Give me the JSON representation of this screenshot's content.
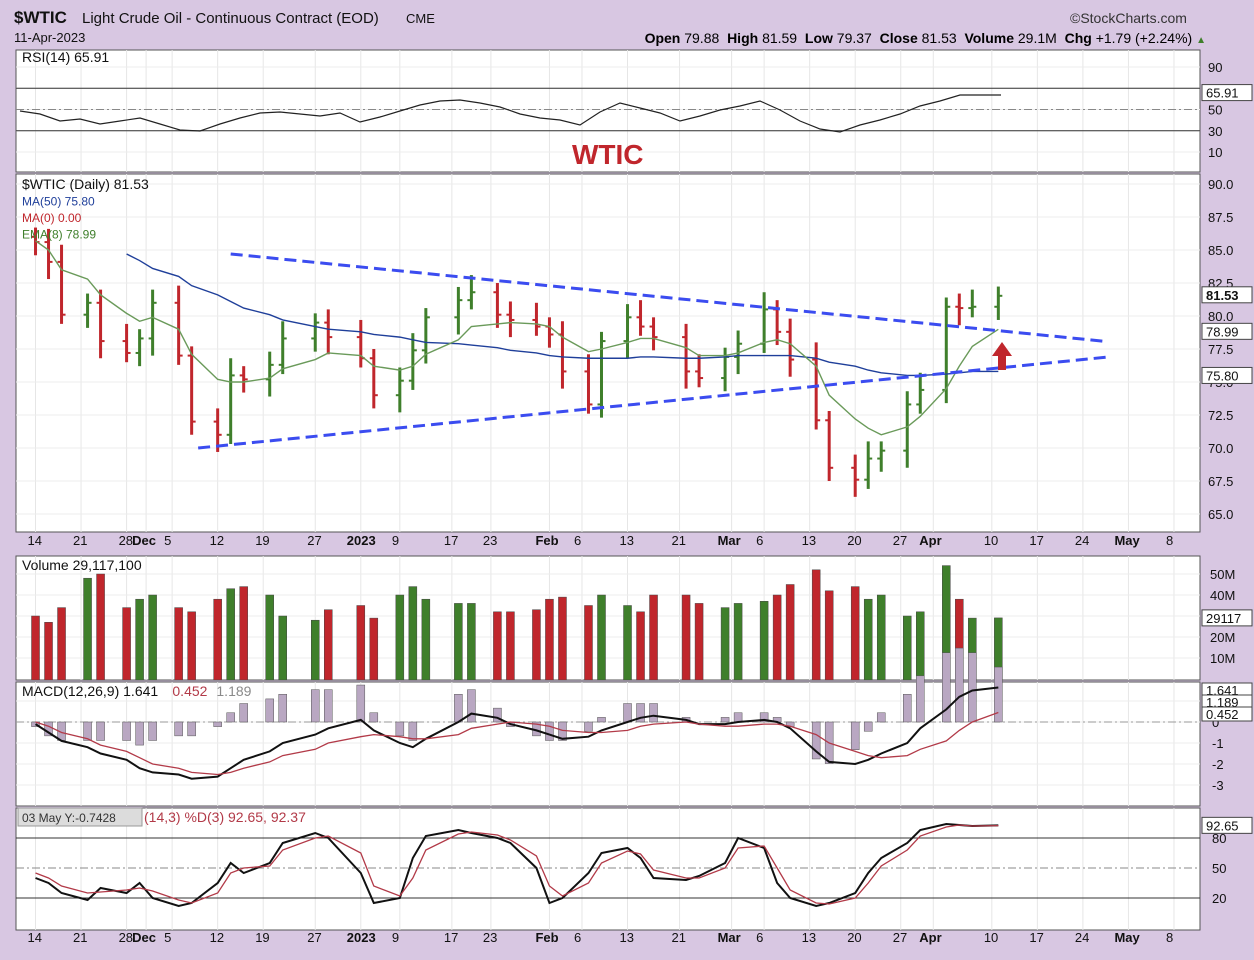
{
  "header": {
    "symbol": "$WTIC",
    "name": "Light Crude Oil - Continuous Contract (EOD)",
    "exchange": "CME",
    "date": "11-Apr-2023",
    "brand": "©StockCharts.com",
    "ohlc": [
      {
        "label": "Open",
        "value": "79.88"
      },
      {
        "label": "High",
        "value": "81.59"
      },
      {
        "label": "Low",
        "value": "79.37"
      },
      {
        "label": "Close",
        "value": "81.53"
      },
      {
        "label": "Volume",
        "value": "29.1M"
      },
      {
        "label": "Chg",
        "value": "+1.79 (+2.24%)"
      }
    ]
  },
  "rsi_panel": {
    "legend": "RSI(14) 65.91",
    "current": 65.91,
    "current_label": "65.91",
    "ticks": [
      "90",
      "70",
      "50",
      "30",
      "10"
    ],
    "ref_lines": [
      70,
      50,
      30
    ],
    "annotation": "WTIC",
    "colors": {
      "line": "#222222",
      "annotation": "#c0262c"
    }
  },
  "price_panel": {
    "legend": [
      {
        "text": "$WTIC (Daily) 81.53",
        "color": "#111111"
      },
      {
        "text": "MA(50) 75.80",
        "color": "#1f3f9a"
      },
      {
        "text": "MA(0) 0.00",
        "color": "#c0262c"
      },
      {
        "text": "EMA(8) 78.99",
        "color": "#3f7f2b"
      }
    ],
    "ticks": [
      "90.0",
      "87.5",
      "85.0",
      "82.5",
      "80.0",
      "77.5",
      "75.0",
      "72.5",
      "70.0",
      "67.5",
      "65.0"
    ],
    "tags": [
      {
        "text": "81.53",
        "value": 81.53,
        "bold": true
      },
      {
        "text": "78.99",
        "value": 78.99,
        "bold": false
      },
      {
        "text": "75.80",
        "value": 75.8,
        "bold": false
      }
    ],
    "trendlines": [
      {
        "name": "upper-resistance",
        "from": [
          "2022-12-14",
          84.7
        ],
        "to": [
          "2023-04-27",
          78.1
        ],
        "color": "#3b4cf0"
      },
      {
        "name": "lower-support",
        "from": [
          "2022-12-09",
          70.0
        ],
        "to": [
          "2023-04-28",
          76.9
        ],
        "color": "#3b4cf0"
      }
    ],
    "colors": {
      "up": "#3f7f2b",
      "down": "#c0262c",
      "ma50": "#1f3f9a",
      "ema8": "#6a9a5a",
      "arrow": "#c0262c"
    }
  },
  "volume_panel": {
    "legend": "Volume 29,117,100",
    "ticks": [
      "50M",
      "40M",
      "30M",
      "20M",
      "10M"
    ],
    "current_label": "29117",
    "colors": {
      "up": "#3f7f2b",
      "down": "#c0262c"
    }
  },
  "macd_panel": {
    "legend_parts": [
      {
        "text": "MACD(12,26,9) 1.641",
        "color": "#111111"
      },
      {
        "text": "0.452",
        "color": "#b23a48"
      },
      {
        "text": "1.189",
        "color": "#8a8a8a"
      }
    ],
    "ticks": [
      "1",
      "0",
      "-1",
      "-2",
      "-3"
    ],
    "tags": [
      {
        "text": "1.641",
        "value": 1.641
      },
      {
        "text": "1.189",
        "value": 1.189
      },
      {
        "text": "0.452",
        "value": 0.452
      }
    ],
    "colors": {
      "macd": "#111111",
      "signal": "#b23a48",
      "hist": "#b9a7c2"
    }
  },
  "stoch_panel": {
    "hover_label": "03 May Y:-0.7428",
    "legend": "(14,3) %D(3) 92.65, 92.37",
    "legend_color": "#b23a48",
    "ticks": [
      "80",
      "50",
      "20"
    ],
    "ref_lines": [
      80,
      50,
      20
    ],
    "current_label": "92.65",
    "colors": {
      "k": "#111111",
      "d": "#b23a48"
    }
  },
  "x_axis": [
    {
      "label": "14",
      "date": "2022-11-14",
      "bold": false
    },
    {
      "label": "21",
      "date": "2022-11-21",
      "bold": false
    },
    {
      "label": "28",
      "date": "2022-11-28",
      "bold": false
    },
    {
      "label": "Dec",
      "date": "2022-12-01",
      "bold": true
    },
    {
      "label": "5",
      "date": "2022-12-05",
      "bold": false
    },
    {
      "label": "12",
      "date": "2022-12-12",
      "bold": false
    },
    {
      "label": "19",
      "date": "2022-12-19",
      "bold": false
    },
    {
      "label": "27",
      "date": "2022-12-27",
      "bold": false
    },
    {
      "label": "2023",
      "date": "2023-01-03",
      "bold": true
    },
    {
      "label": "9",
      "date": "2023-01-09",
      "bold": false
    },
    {
      "label": "17",
      "date": "2023-01-17",
      "bold": false
    },
    {
      "label": "23",
      "date": "2023-01-23",
      "bold": false
    },
    {
      "label": "Feb",
      "date": "2023-02-01",
      "bold": true
    },
    {
      "label": "6",
      "date": "2023-02-06",
      "bold": false
    },
    {
      "label": "13",
      "date": "2023-02-13",
      "bold": false
    },
    {
      "label": "21",
      "date": "2023-02-21",
      "bold": false
    },
    {
      "label": "Mar",
      "date": "2023-03-01",
      "bold": true
    },
    {
      "label": "6",
      "date": "2023-03-06",
      "bold": false
    },
    {
      "label": "13",
      "date": "2023-03-13",
      "bold": false
    },
    {
      "label": "20",
      "date": "2023-03-20",
      "bold": false
    },
    {
      "label": "27",
      "date": "2023-03-27",
      "bold": false
    },
    {
      "label": "Apr",
      "date": "2023-04-01",
      "bold": true
    },
    {
      "label": "10",
      "date": "2023-04-10",
      "bold": false
    },
    {
      "label": "17",
      "date": "2023-04-17",
      "bold": false
    },
    {
      "label": "24",
      "date": "2023-04-24",
      "bold": false
    },
    {
      "label": "May",
      "date": "2023-05-01",
      "bold": true
    },
    {
      "label": "8",
      "date": "2023-05-08",
      "bold": false
    }
  ],
  "chart_data": {
    "type": "line",
    "title": "$WTIC Light Crude Oil - Continuous Contract (EOD)",
    "xlabel": "",
    "ylabel": "",
    "ylim": [
      64,
      91
    ],
    "x_range": [
      "2022-11-11",
      "2023-05-12"
    ],
    "grid": true,
    "legend_position": "top-left",
    "x": [
      "2022-11-14",
      "2022-11-16",
      "2022-11-18",
      "2022-11-22",
      "2022-11-24",
      "2022-11-28",
      "2022-11-30",
      "2022-12-02",
      "2022-12-06",
      "2022-12-08",
      "2022-12-12",
      "2022-12-14",
      "2022-12-16",
      "2022-12-20",
      "2022-12-22",
      "2022-12-27",
      "2022-12-29",
      "2023-01-03",
      "2023-01-05",
      "2023-01-09",
      "2023-01-11",
      "2023-01-13",
      "2023-01-18",
      "2023-01-20",
      "2023-01-24",
      "2023-01-26",
      "2023-01-30",
      "2023-02-01",
      "2023-02-03",
      "2023-02-07",
      "2023-02-09",
      "2023-02-13",
      "2023-02-15",
      "2023-02-17",
      "2023-02-22",
      "2023-02-24",
      "2023-02-28",
      "2023-03-02",
      "2023-03-06",
      "2023-03-08",
      "2023-03-10",
      "2023-03-14",
      "2023-03-16",
      "2023-03-20",
      "2023-03-22",
      "2023-03-24",
      "2023-03-28",
      "2023-03-30",
      "2023-04-03",
      "2023-04-05",
      "2023-04-07",
      "2023-04-11"
    ],
    "series": [
      {
        "name": "$WTIC (Daily)",
        "values": [
          85.6,
          84.1,
          80.1,
          81.0,
          78.1,
          77.2,
          78.3,
          81.0,
          77.0,
          72.0,
          71.0,
          75.5,
          75.2,
          76.3,
          78.3,
          79.5,
          78.4,
          76.8,
          74.0,
          75.1,
          77.4,
          79.9,
          81.2,
          81.8,
          80.1,
          79.7,
          79.2,
          78.6,
          75.8,
          73.3,
          78.1,
          79.9,
          79.2,
          78.4,
          75.8,
          75.3,
          76.9,
          77.9,
          80.5,
          78.8,
          76.7,
          72.1,
          68.5,
          67.6,
          69.2,
          69.8,
          73.3,
          74.4,
          80.7,
          80.6,
          80.7,
          81.53
        ]
      },
      {
        "name": "MA(50)",
        "values": [
          null,
          null,
          null,
          null,
          null,
          84.7,
          84.2,
          83.6,
          83.0,
          82.3,
          81.6,
          81.1,
          80.6,
          80.1,
          79.7,
          79.2,
          79.0,
          78.8,
          78.6,
          78.4,
          78.2,
          78.0,
          77.9,
          77.8,
          77.6,
          77.4,
          77.2,
          77.0,
          76.9,
          76.8,
          76.8,
          76.8,
          76.9,
          76.9,
          76.8,
          76.8,
          76.9,
          77.0,
          77.0,
          77.0,
          77.0,
          76.8,
          76.5,
          76.2,
          75.9,
          75.7,
          75.5,
          75.5,
          75.6,
          75.7,
          75.8,
          75.8
        ]
      },
      {
        "name": "EMA(8)",
        "values": [
          85.7,
          85.0,
          83.5,
          82.8,
          81.6,
          80.2,
          79.6,
          79.9,
          79.0,
          77.1,
          75.2,
          75.0,
          75.0,
          75.3,
          76.0,
          76.7,
          77.2,
          77.0,
          76.2,
          75.9,
          76.2,
          77.1,
          78.2,
          79.2,
          79.4,
          79.5,
          79.4,
          79.2,
          78.4,
          77.3,
          77.5,
          78.0,
          78.3,
          78.3,
          77.6,
          77.0,
          77.0,
          77.2,
          78.0,
          78.2,
          77.9,
          76.2,
          74.0,
          72.2,
          71.5,
          71.0,
          71.6,
          72.4,
          74.5,
          76.2,
          77.7,
          78.99
        ]
      }
    ]
  }
}
